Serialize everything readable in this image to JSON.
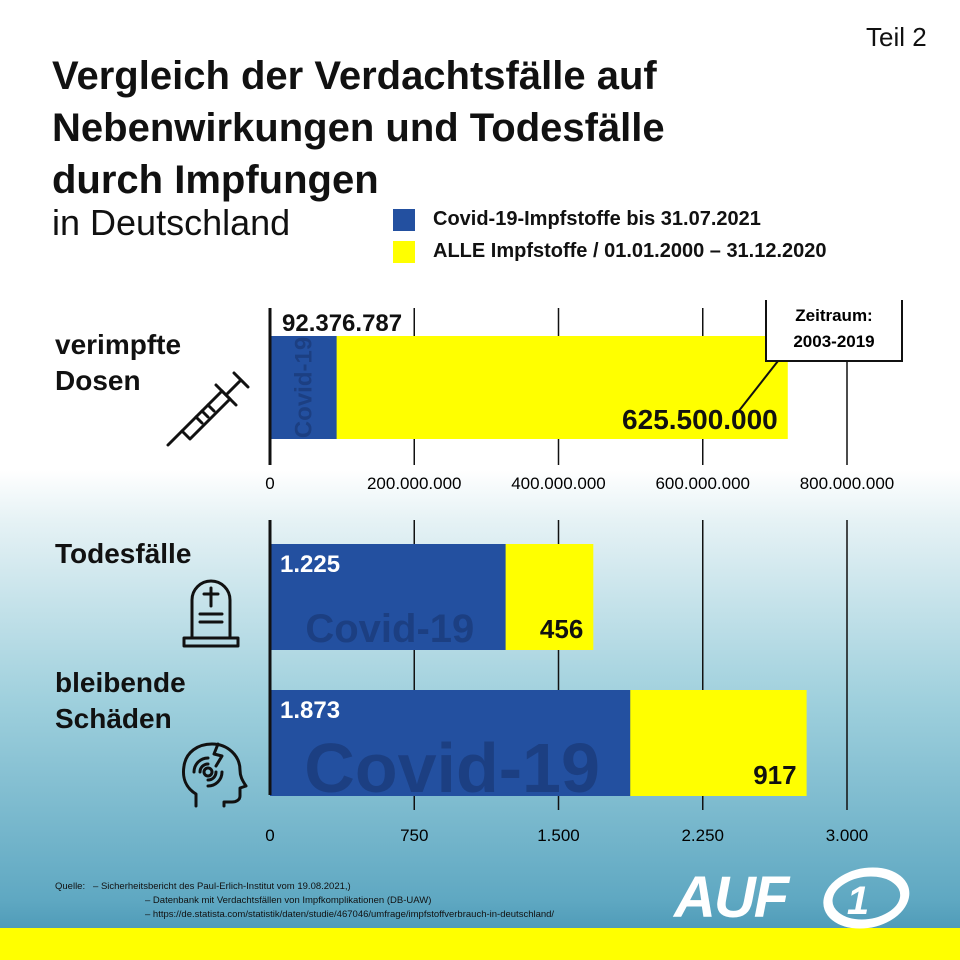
{
  "part": "Teil 2",
  "title_lines": [
    "Vergleich der Verdachtsfälle auf",
    "Nebenwirkungen und Todesfälle",
    "durch Impfungen"
  ],
  "subtitle": "in Deutschland",
  "legend": [
    {
      "label": "Covid-19-Impfstoffe bis 31.07.2021",
      "color": "#2350a0"
    },
    {
      "label": "ALLE Impfstoffe / 01.01.2000 – 31.12.2020",
      "color": "#ffff00"
    }
  ],
  "callout": [
    "Zeitraum:",
    "2003-2019"
  ],
  "chart_data": [
    {
      "type": "bar",
      "orientation": "horizontal",
      "stacked": true,
      "categories": [
        "verimpfte Dosen"
      ],
      "category_label_lines": [
        [
          "verimpfte",
          "Dosen"
        ]
      ],
      "series": [
        {
          "name": "Covid-19-Impfstoffe bis 31.07.2021",
          "values": [
            92376787
          ],
          "value_labels": [
            "92.376.787"
          ]
        },
        {
          "name": "ALLE Impfstoffe / 01.01.2000 – 31.12.2020",
          "values": [
            625500000
          ],
          "value_labels": [
            "625.500.000"
          ]
        }
      ],
      "bar_watermark": "Covid-19",
      "xlim": [
        0,
        800000000
      ],
      "xticks": [
        0,
        200000000,
        400000000,
        600000000,
        800000000
      ],
      "xtick_labels": [
        "0",
        "200.000.000",
        "400.000.000",
        "600.000.000",
        "800.000.000"
      ],
      "grid": true
    },
    {
      "type": "bar",
      "orientation": "horizontal",
      "stacked": true,
      "categories": [
        "Todesfälle",
        "bleibende Schäden"
      ],
      "category_label_lines": [
        [
          "Todesfälle"
        ],
        [
          "bleibende",
          "Schäden"
        ]
      ],
      "series": [
        {
          "name": "Covid-19-Impfstoffe bis 31.07.2021",
          "values": [
            1225,
            1873
          ],
          "value_labels": [
            "1.225",
            "1.873"
          ]
        },
        {
          "name": "ALLE Impfstoffe / 01.01.2000 – 31.12.2020",
          "values": [
            456,
            917
          ],
          "value_labels": [
            "456",
            "917"
          ]
        }
      ],
      "bar_watermark": "Covid-19",
      "xlim": [
        0,
        3000
      ],
      "xticks": [
        0,
        750,
        1500,
        2250,
        3000
      ],
      "xtick_labels": [
        "0",
        "750",
        "1.500",
        "2.250",
        "3.000"
      ],
      "grid": true
    }
  ],
  "icons": [
    "syringe-icon",
    "gravestone-icon",
    "head-injury-icon"
  ],
  "source_label": "Quelle:",
  "sources": [
    "– Sicherheitsbericht des Paul-Erlich-Institut vom 19.08.2021,)",
    "– Datenbank mit Verdachtsfällen von Impfkomplikationen (DB-UAW)",
    "– https://de.statista.com/statistik/daten/studie/467046/umfrage/impfstoffverbrauch-in-deutschland/"
  ],
  "logo_text": "AUF",
  "logo_number": "1"
}
